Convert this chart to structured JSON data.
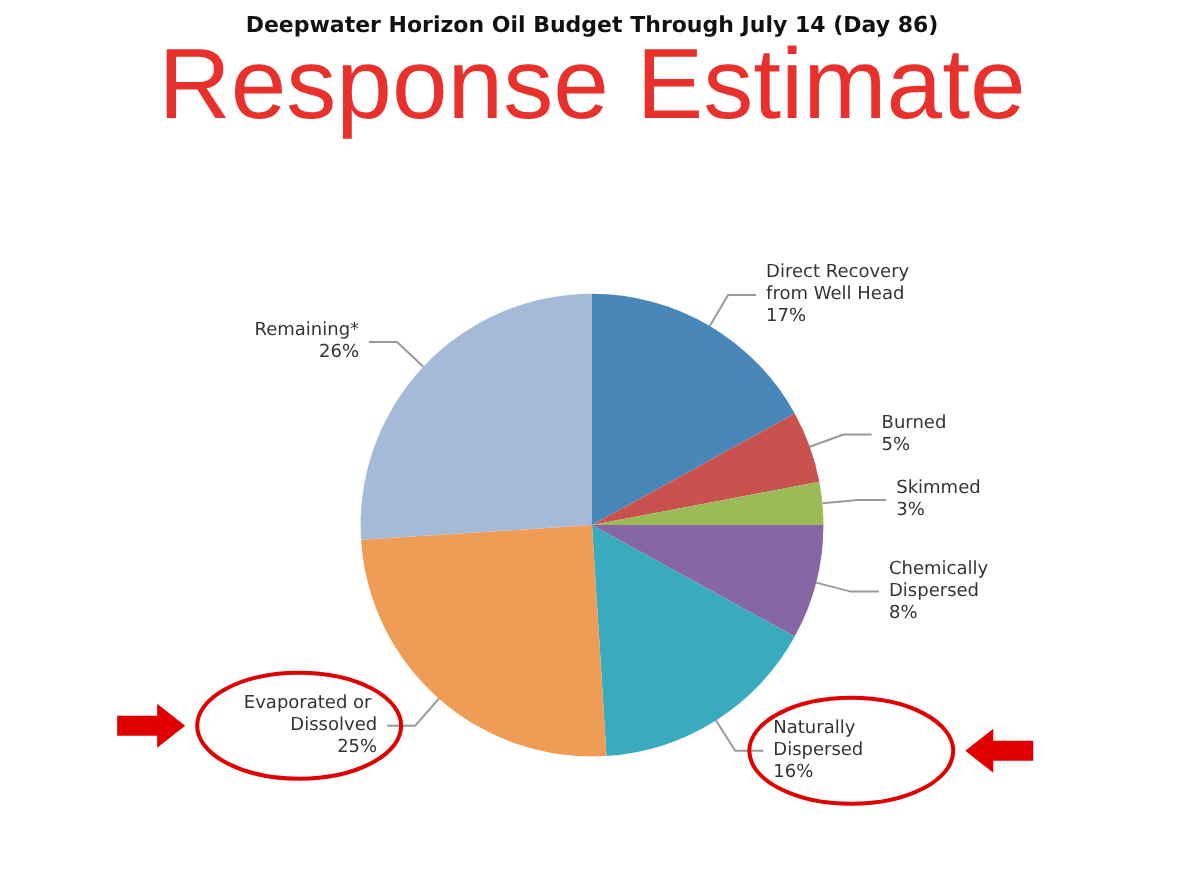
{
  "chart_data": {
    "type": "pie",
    "title": "Deepwater Horizon Oil Budget Through July 14 (Day 86)",
    "subtitle": "Response Estimate",
    "categories": [
      "Direct Recovery from Well Head",
      "Burned",
      "Skimmed",
      "Chemically Dispersed",
      "Naturally Dispersed",
      "Evaporated or Dissolved",
      "Remaining*"
    ],
    "values": [
      17,
      5,
      3,
      8,
      16,
      25,
      26
    ],
    "colors": [
      "#4a87b9",
      "#c9524f",
      "#9bbb59",
      "#8467a3",
      "#3aaabf",
      "#ef9c57",
      "#a5b9d9"
    ],
    "data_labels": true,
    "value_labels": [
      "17%",
      "5%",
      "3%",
      "8%",
      "16%",
      "25%",
      "26%"
    ],
    "legend": false
  }
}
